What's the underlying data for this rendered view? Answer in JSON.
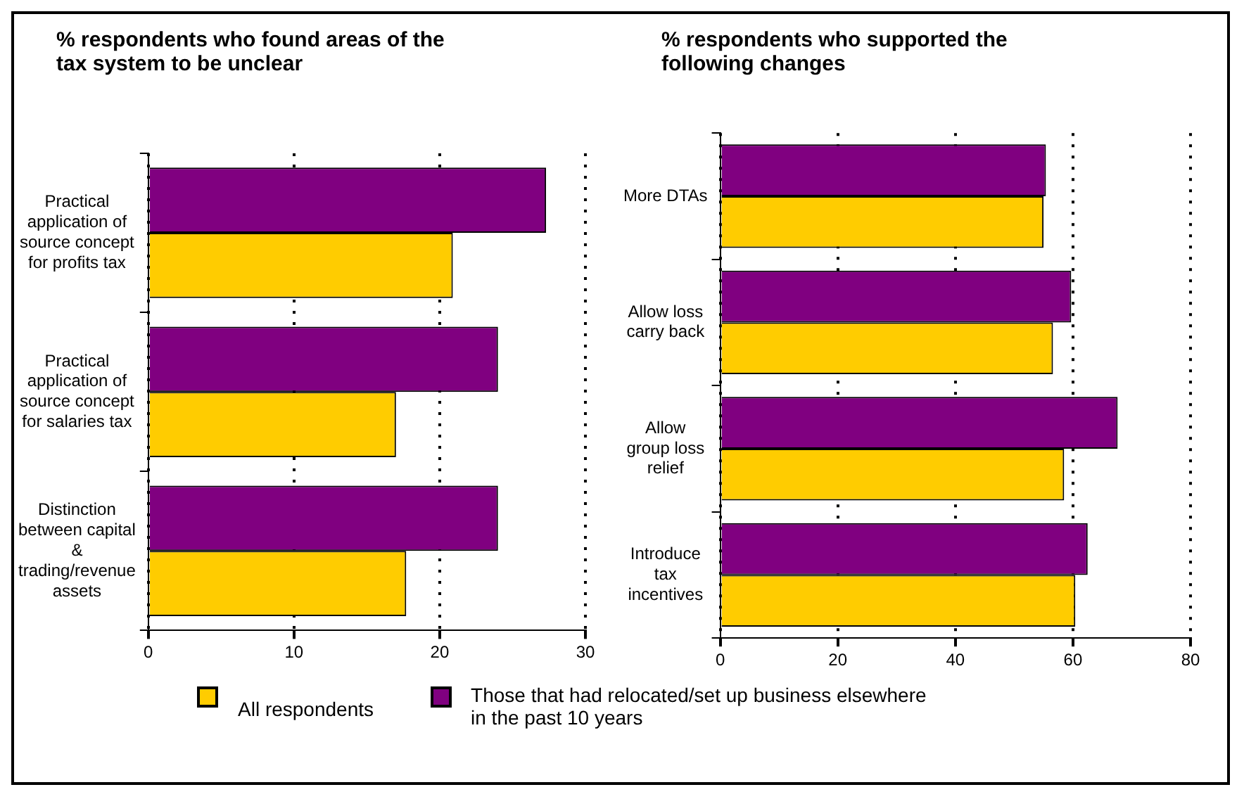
{
  "chart_data": [
    {
      "type": "bar",
      "orientation": "horizontal",
      "title": "% respondents who found areas of the tax system to be unclear",
      "categories": [
        "Practical application of source concept for profits tax",
        "Practical application of source concept for salaries tax",
        "Distinction between capital & trading/revenue assets"
      ],
      "series": [
        {
          "name": "Those that had relocated/set up business elsewhere in the past 10 years",
          "color": "#800080",
          "values": [
            27.3,
            24.0,
            24.0
          ]
        },
        {
          "name": "All respondents",
          "color": "#ffcc00",
          "values": [
            20.9,
            17.0,
            17.7
          ]
        }
      ],
      "xlim": [
        0,
        30
      ],
      "xticks": [
        0,
        10,
        20,
        30
      ],
      "grid": "x",
      "legend": "bottom"
    },
    {
      "type": "bar",
      "orientation": "horizontal",
      "title": "% respondents who supported the following changes",
      "categories": [
        "More DTAs",
        "Allow loss carry back",
        "Allow group loss relief",
        "Introduce tax incentives"
      ],
      "series": [
        {
          "name": "Those that had relocated/set up business elsewhere in the past 10 years",
          "color": "#800080",
          "values": [
            55.4,
            59.7,
            67.6,
            62.5
          ]
        },
        {
          "name": "All respondents",
          "color": "#ffcc00",
          "values": [
            55.0,
            56.6,
            58.5,
            60.4
          ]
        }
      ],
      "xlim": [
        0,
        80
      ],
      "xticks": [
        0,
        20,
        40,
        60,
        80
      ],
      "grid": "x",
      "legend": "bottom"
    }
  ]
}
